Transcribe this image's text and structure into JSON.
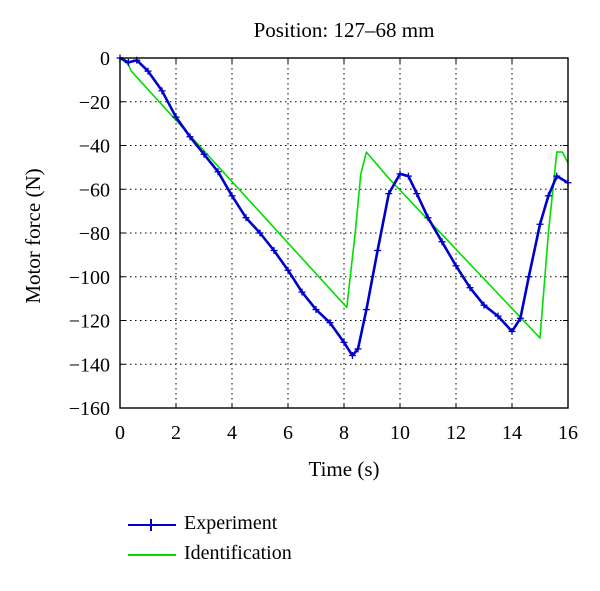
{
  "chart_data": {
    "type": "line",
    "title": "Position: 127–68 mm",
    "xlabel": "Time (s)",
    "ylabel": "Motor force (N)",
    "xlim": [
      0,
      16
    ],
    "ylim": [
      -160,
      0
    ],
    "xticks": [
      0,
      2,
      4,
      6,
      8,
      10,
      12,
      14,
      16
    ],
    "yticks": [
      0,
      -20,
      -40,
      -60,
      -80,
      -100,
      -120,
      -140,
      -160
    ],
    "xtick_labels": [
      "0",
      "2",
      "4",
      "6",
      "8",
      "10",
      "12",
      "14",
      "16"
    ],
    "ytick_labels": [
      "0",
      "−20",
      "−40",
      "−60",
      "−80",
      "−100",
      "−120",
      "−140",
      "−160"
    ],
    "grid": true,
    "legend_position": "below",
    "series": [
      {
        "name": "Experiment",
        "color": "#0000cc",
        "marker": "plus",
        "x": [
          0,
          0.3,
          0.6,
          1.0,
          1.5,
          2.0,
          2.5,
          3.0,
          3.5,
          4.0,
          4.5,
          5.0,
          5.5,
          6.0,
          6.5,
          7.0,
          7.5,
          8.0,
          8.3,
          8.5,
          8.8,
          9.2,
          9.6,
          10.0,
          10.3,
          10.6,
          11.0,
          11.5,
          12.0,
          12.5,
          13.0,
          13.5,
          14.0,
          14.3,
          14.6,
          15.0,
          15.3,
          15.6,
          16.0
        ],
        "y": [
          0,
          -2,
          -1,
          -6,
          -15,
          -27,
          -36,
          -44,
          -52,
          -63,
          -73,
          -80,
          -88,
          -97,
          -107,
          -115,
          -121,
          -130,
          -136,
          -133,
          -115,
          -88,
          -62,
          -53,
          -54,
          -62,
          -73,
          -84,
          -95,
          -105,
          -113,
          -118,
          -125,
          -119,
          -100,
          -76,
          -63,
          -54,
          -57
        ]
      },
      {
        "name": "Identification",
        "color": "#00dd00",
        "marker": "none",
        "x": [
          0,
          0.3,
          0.4,
          8.1,
          8.4,
          8.6,
          8.8,
          9.2,
          9.6,
          15.0,
          15.3,
          15.6,
          15.8,
          16.0
        ],
        "y": [
          0,
          -3,
          -6,
          -114,
          -80,
          -53,
          -43,
          -49,
          -55,
          -128,
          -80,
          -43,
          -43,
          -48
        ]
      }
    ]
  }
}
